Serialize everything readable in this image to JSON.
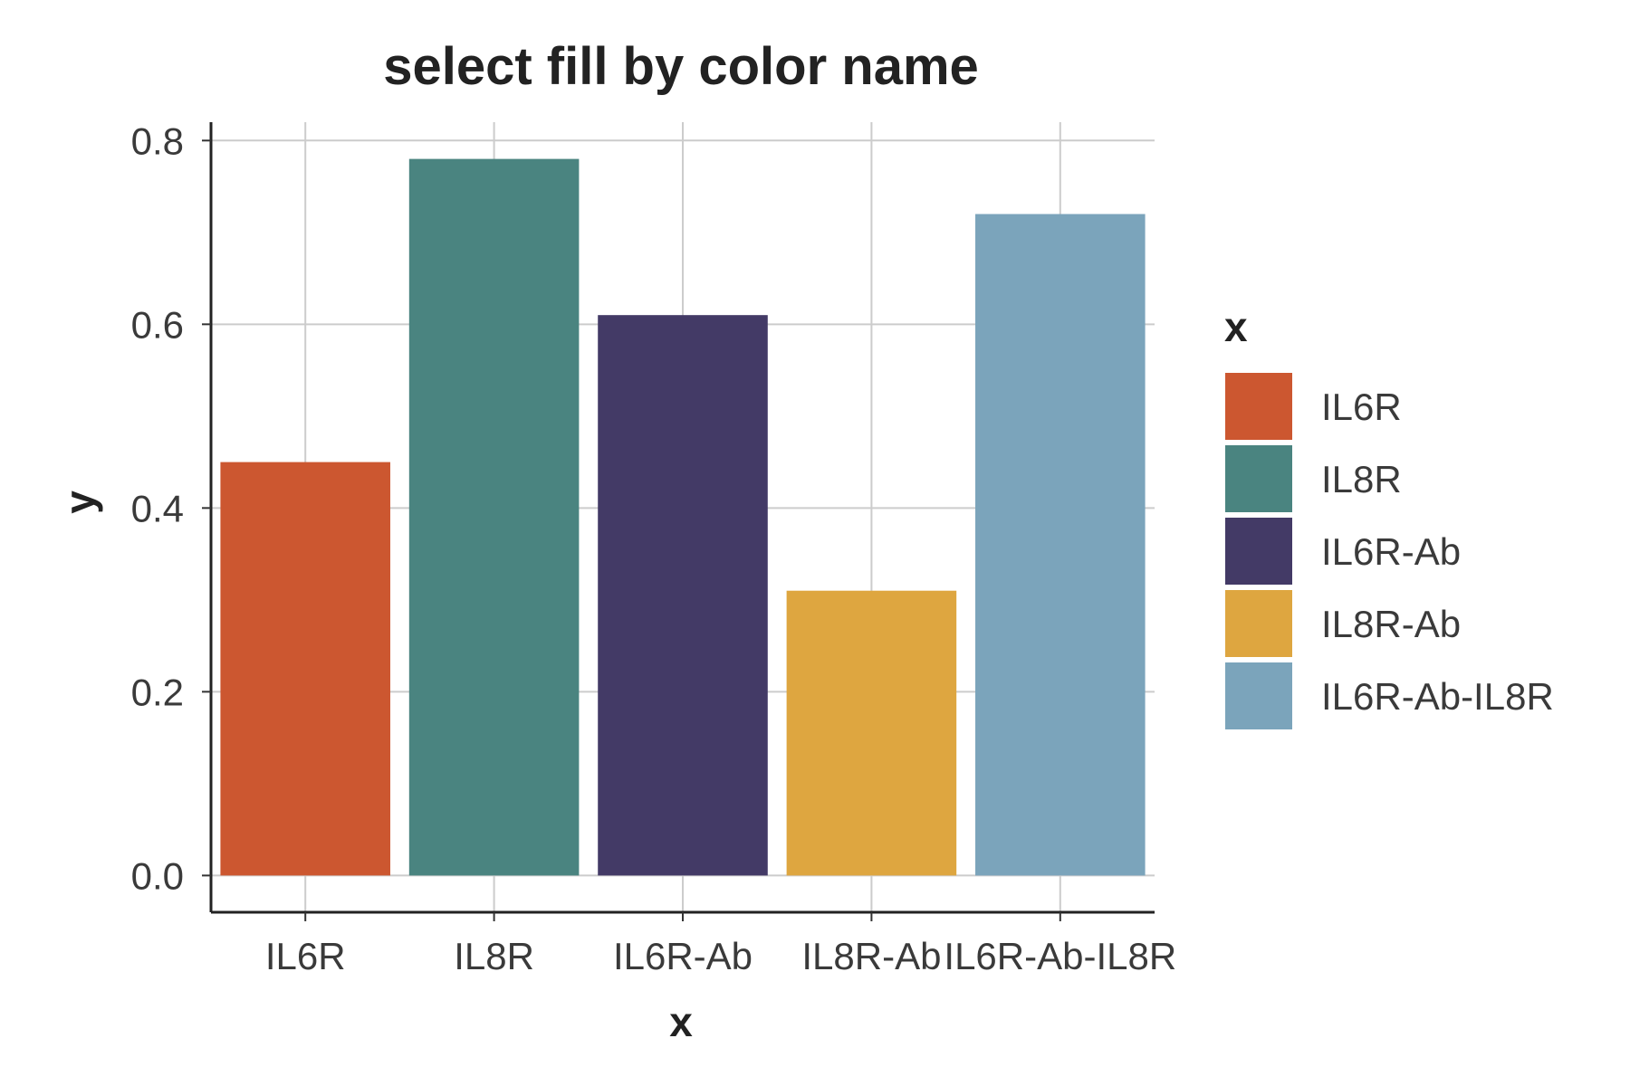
{
  "chart_data": {
    "type": "bar",
    "title": "select fill by color name",
    "xlabel": "x",
    "ylabel": "y",
    "categories": [
      "IL6R",
      "IL8R",
      "IL6R-Ab",
      "IL8R-Ab",
      "IL6R-Ab-IL8R"
    ],
    "values": [
      0.45,
      0.78,
      0.61,
      0.31,
      0.72
    ],
    "colors": [
      "#cc5730",
      "#4a8480",
      "#433a66",
      "#dea640",
      "#7ba4bb"
    ],
    "ylim": [
      -0.04,
      0.82
    ],
    "yticks": [
      0.0,
      0.2,
      0.4,
      0.6,
      0.8
    ],
    "ytick_labels": [
      "0.0",
      "0.2",
      "0.4",
      "0.6",
      "0.8"
    ],
    "grid": true,
    "legend": {
      "title": "x",
      "placement": "right",
      "entries": [
        "IL6R",
        "IL8R",
        "IL6R-Ab",
        "IL8R-Ab",
        "IL6R-Ab-IL8R"
      ]
    }
  }
}
